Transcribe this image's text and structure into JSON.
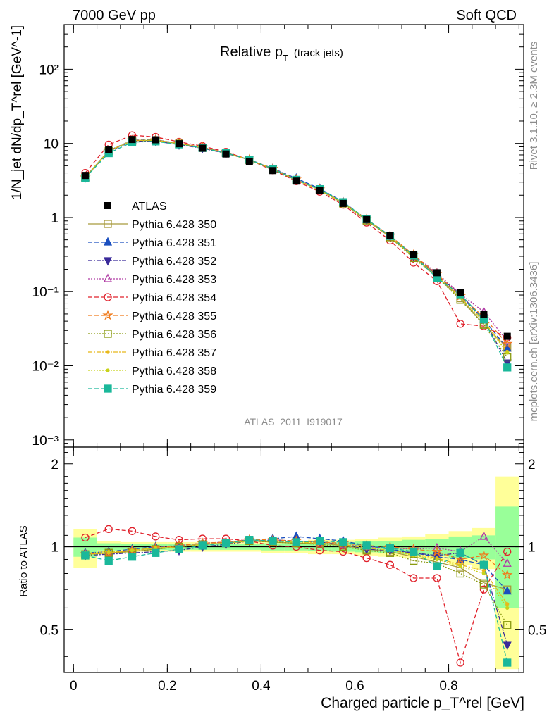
{
  "header": {
    "left": "7000 GeV pp",
    "right": "Soft QCD"
  },
  "side": {
    "rivet": "Rivet 3.1.10, ≥ 2.3M events",
    "mcplots": "mcplots.cern.ch [arXiv:1306.3436]"
  },
  "chart_data": {
    "type": "line",
    "title_main": "Relative p",
    "title_sub": "T",
    "title_extra": "(track jets)",
    "analysis_id": "ATLAS_2011_I919017",
    "ylabel_main": "1/N_jet dN/dp_T^rel [GeV^-1]",
    "ylabel_ratio": "Ratio to ATLAS",
    "xlabel": "Charged particle p_T^rel [GeV]",
    "x_ticks": [
      "0",
      "0.2",
      "0.4",
      "0.6",
      "0.8"
    ],
    "y_ticks_main": [
      "10⁻³",
      "10⁻²",
      "10⁻¹",
      "1",
      "10",
      "10²"
    ],
    "y_ticks_ratio": [
      "0.5",
      "1",
      "2"
    ],
    "xlim": [
      -0.02,
      0.96
    ],
    "ylim_main": [
      0.0008,
      400
    ],
    "ylim_ratio": [
      0.35,
      2.3
    ],
    "y_scale": "log",
    "legend_position": "left-center",
    "x": [
      0.025,
      0.075,
      0.125,
      0.175,
      0.225,
      0.275,
      0.325,
      0.375,
      0.425,
      0.475,
      0.525,
      0.575,
      0.625,
      0.675,
      0.725,
      0.775,
      0.825,
      0.875,
      0.925
    ],
    "bin_edges": [
      0,
      0.05,
      0.1,
      0.15,
      0.2,
      0.25,
      0.3,
      0.35,
      0.4,
      0.45,
      0.5,
      0.55,
      0.6,
      0.65,
      0.7,
      0.75,
      0.8,
      0.85,
      0.9,
      0.95
    ],
    "data": {
      "name": "ATLAS",
      "values": [
        3.7,
        8.3,
        11.3,
        11.2,
        9.9,
        8.6,
        7.2,
        5.7,
        4.3,
        3.1,
        2.3,
        1.55,
        0.94,
        0.57,
        0.32,
        0.18,
        0.097,
        0.049,
        0.025
      ],
      "band_yellow": [
        0.16,
        0.05,
        0.04,
        0.04,
        0.04,
        0.04,
        0.04,
        0.04,
        0.05,
        0.05,
        0.06,
        0.06,
        0.07,
        0.08,
        0.09,
        0.11,
        0.14,
        0.17,
        0.8
      ],
      "band_green": [
        0.08,
        0.03,
        0.025,
        0.025,
        0.025,
        0.025,
        0.025,
        0.025,
        0.03,
        0.03,
        0.035,
        0.04,
        0.045,
        0.05,
        0.06,
        0.07,
        0.09,
        0.1,
        0.4
      ]
    },
    "series": [
      {
        "name": "Pythia 6.428 350",
        "color": "#a89a3c",
        "marker": "square-open",
        "dash": "",
        "ratio": [
          0.94,
          0.95,
          0.96,
          0.98,
          1.0,
          1.02,
          1.03,
          1.05,
          1.04,
          1.03,
          1.03,
          1.01,
          0.98,
          0.96,
          0.92,
          0.88,
          0.84,
          0.74,
          0.7
        ]
      },
      {
        "name": "Pythia 6.428 351",
        "color": "#1a4fbf",
        "marker": "triangle-up",
        "dash": "6,3",
        "ratio": [
          0.95,
          0.96,
          0.98,
          1.0,
          1.01,
          1.03,
          1.04,
          1.06,
          1.07,
          1.09,
          1.07,
          1.05,
          1.01,
          0.98,
          0.95,
          0.92,
          0.9,
          0.86,
          0.69
        ]
      },
      {
        "name": "Pythia 6.428 352",
        "color": "#3a2a9a",
        "marker": "triangle-down",
        "dash": "6,2,2,2",
        "ratio": [
          0.93,
          0.94,
          0.95,
          0.96,
          0.97,
          1.0,
          1.02,
          1.05,
          1.06,
          1.05,
          1.04,
          1.02,
          0.98,
          0.97,
          0.95,
          0.93,
          0.95,
          0.86,
          0.44
        ]
      },
      {
        "name": "Pythia 6.428 353",
        "color": "#b03aa4",
        "marker": "triangle-open",
        "dash": "2,2",
        "ratio": [
          0.94,
          0.95,
          0.97,
          0.99,
          1.01,
          1.03,
          1.04,
          1.05,
          1.05,
          1.04,
          1.03,
          1.02,
          1.0,
          0.99,
          0.98,
          0.99,
          0.96,
          1.09,
          0.87
        ]
      },
      {
        "name": "Pythia 6.428 354",
        "color": "#e0202a",
        "marker": "circle-open",
        "dash": "6,3",
        "ratio": [
          1.08,
          1.16,
          1.14,
          1.09,
          1.06,
          1.07,
          1.07,
          1.05,
          1.01,
          1.0,
          0.97,
          0.96,
          0.91,
          0.86,
          0.77,
          0.77,
          0.38,
          0.7,
          0.96
        ]
      },
      {
        "name": "Pythia 6.428 355",
        "color": "#f07a1a",
        "marker": "star-open",
        "dash": "6,3",
        "ratio": [
          0.94,
          0.95,
          0.97,
          0.99,
          1.01,
          1.03,
          1.04,
          1.06,
          1.06,
          1.05,
          1.04,
          1.03,
          1.01,
          1.0,
          0.98,
          0.96,
          0.9,
          0.93,
          0.79
        ]
      },
      {
        "name": "Pythia 6.428 356",
        "color": "#8a9a10",
        "marker": "square-open",
        "dash": "2,2",
        "ratio": [
          0.93,
          0.95,
          0.96,
          0.98,
          1.0,
          1.02,
          1.03,
          1.05,
          1.04,
          1.03,
          1.02,
          1.0,
          0.97,
          0.95,
          0.89,
          0.87,
          0.8,
          0.73,
          0.52
        ]
      },
      {
        "name": "Pythia 6.428 357",
        "color": "#e8b81a",
        "marker": "dot",
        "dash": "6,2,2,2",
        "ratio": [
          0.94,
          0.95,
          0.97,
          0.99,
          1.0,
          1.02,
          1.03,
          1.05,
          1.05,
          1.04,
          1.03,
          1.02,
          0.99,
          0.97,
          0.94,
          0.91,
          0.86,
          0.82,
          0.62
        ]
      },
      {
        "name": "Pythia 6.428 358",
        "color": "#c8d21a",
        "marker": "dot",
        "dash": "2,2",
        "ratio": [
          0.95,
          0.96,
          0.97,
          0.99,
          1.0,
          1.02,
          1.03,
          1.05,
          1.05,
          1.04,
          1.03,
          1.02,
          0.99,
          0.97,
          0.93,
          0.9,
          0.85,
          0.8,
          0.6
        ]
      },
      {
        "name": "Pythia 6.428 359",
        "color": "#1ab89a",
        "marker": "square",
        "dash": "6,3",
        "ratio": [
          0.93,
          0.89,
          0.92,
          0.95,
          0.98,
          1.01,
          1.03,
          1.06,
          1.05,
          1.04,
          1.05,
          1.04,
          1.01,
          0.99,
          0.96,
          0.85,
          0.95,
          0.86,
          0.38
        ]
      }
    ]
  }
}
